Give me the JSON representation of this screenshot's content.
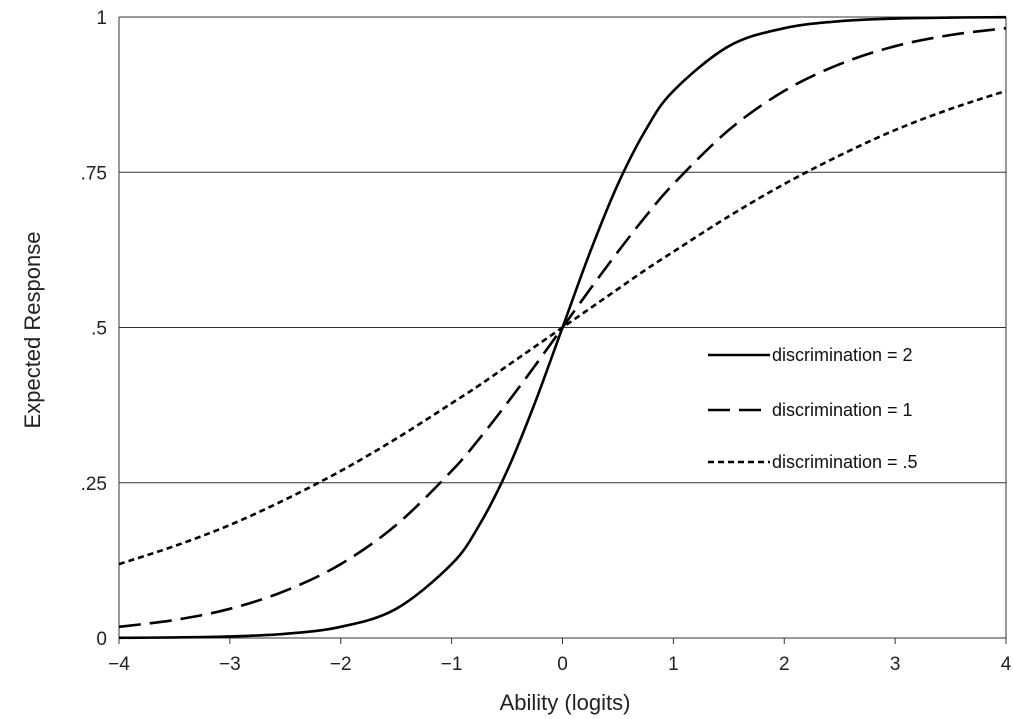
{
  "chart_data": {
    "type": "line",
    "title": "",
    "xlabel": "Ability (logits)",
    "ylabel": "Expected Response",
    "xlim": [
      -4,
      4
    ],
    "ylim": [
      0,
      1
    ],
    "xticks": [
      -4,
      -3,
      -2,
      -1,
      0,
      1,
      2,
      3,
      4
    ],
    "xtick_labels": [
      "−4",
      "−3",
      "−2",
      "−1",
      "0",
      "1",
      "2",
      "3",
      "4"
    ],
    "yticks": [
      0,
      0.25,
      0.5,
      0.75,
      1
    ],
    "ytick_labels": [
      "0",
      ".25",
      ".5",
      ".75",
      "1"
    ],
    "grid": "horizontal",
    "legend_position": "right",
    "x": [
      -4,
      -3.5,
      -3,
      -2.5,
      -2,
      -1.5,
      -1,
      -0.75,
      -0.5,
      -0.25,
      0,
      0.25,
      0.5,
      0.75,
      1,
      1.5,
      2,
      2.5,
      3,
      3.5,
      4
    ],
    "series": [
      {
        "name": "discrimination = 2",
        "style": "solid",
        "values": [
          0.0003,
          0.0009,
          0.0025,
          0.0067,
          0.018,
          0.047,
          0.119,
          0.182,
          0.269,
          0.378,
          0.5,
          0.622,
          0.731,
          0.818,
          0.881,
          0.953,
          0.982,
          0.9933,
          0.9975,
          0.9991,
          0.9997
        ]
      },
      {
        "name": "discrimination = 1",
        "style": "dashed",
        "values": [
          0.018,
          0.029,
          0.047,
          0.076,
          0.119,
          0.182,
          0.269,
          0.321,
          0.378,
          0.438,
          0.5,
          0.562,
          0.622,
          0.679,
          0.731,
          0.818,
          0.881,
          0.924,
          0.953,
          0.971,
          0.982
        ]
      },
      {
        "name": "discrimination = .5",
        "style": "dotted",
        "values": [
          0.119,
          0.148,
          0.182,
          0.223,
          0.269,
          0.321,
          0.378,
          0.407,
          0.438,
          0.469,
          0.5,
          0.531,
          0.562,
          0.593,
          0.622,
          0.679,
          0.731,
          0.777,
          0.818,
          0.852,
          0.881
        ]
      }
    ]
  }
}
